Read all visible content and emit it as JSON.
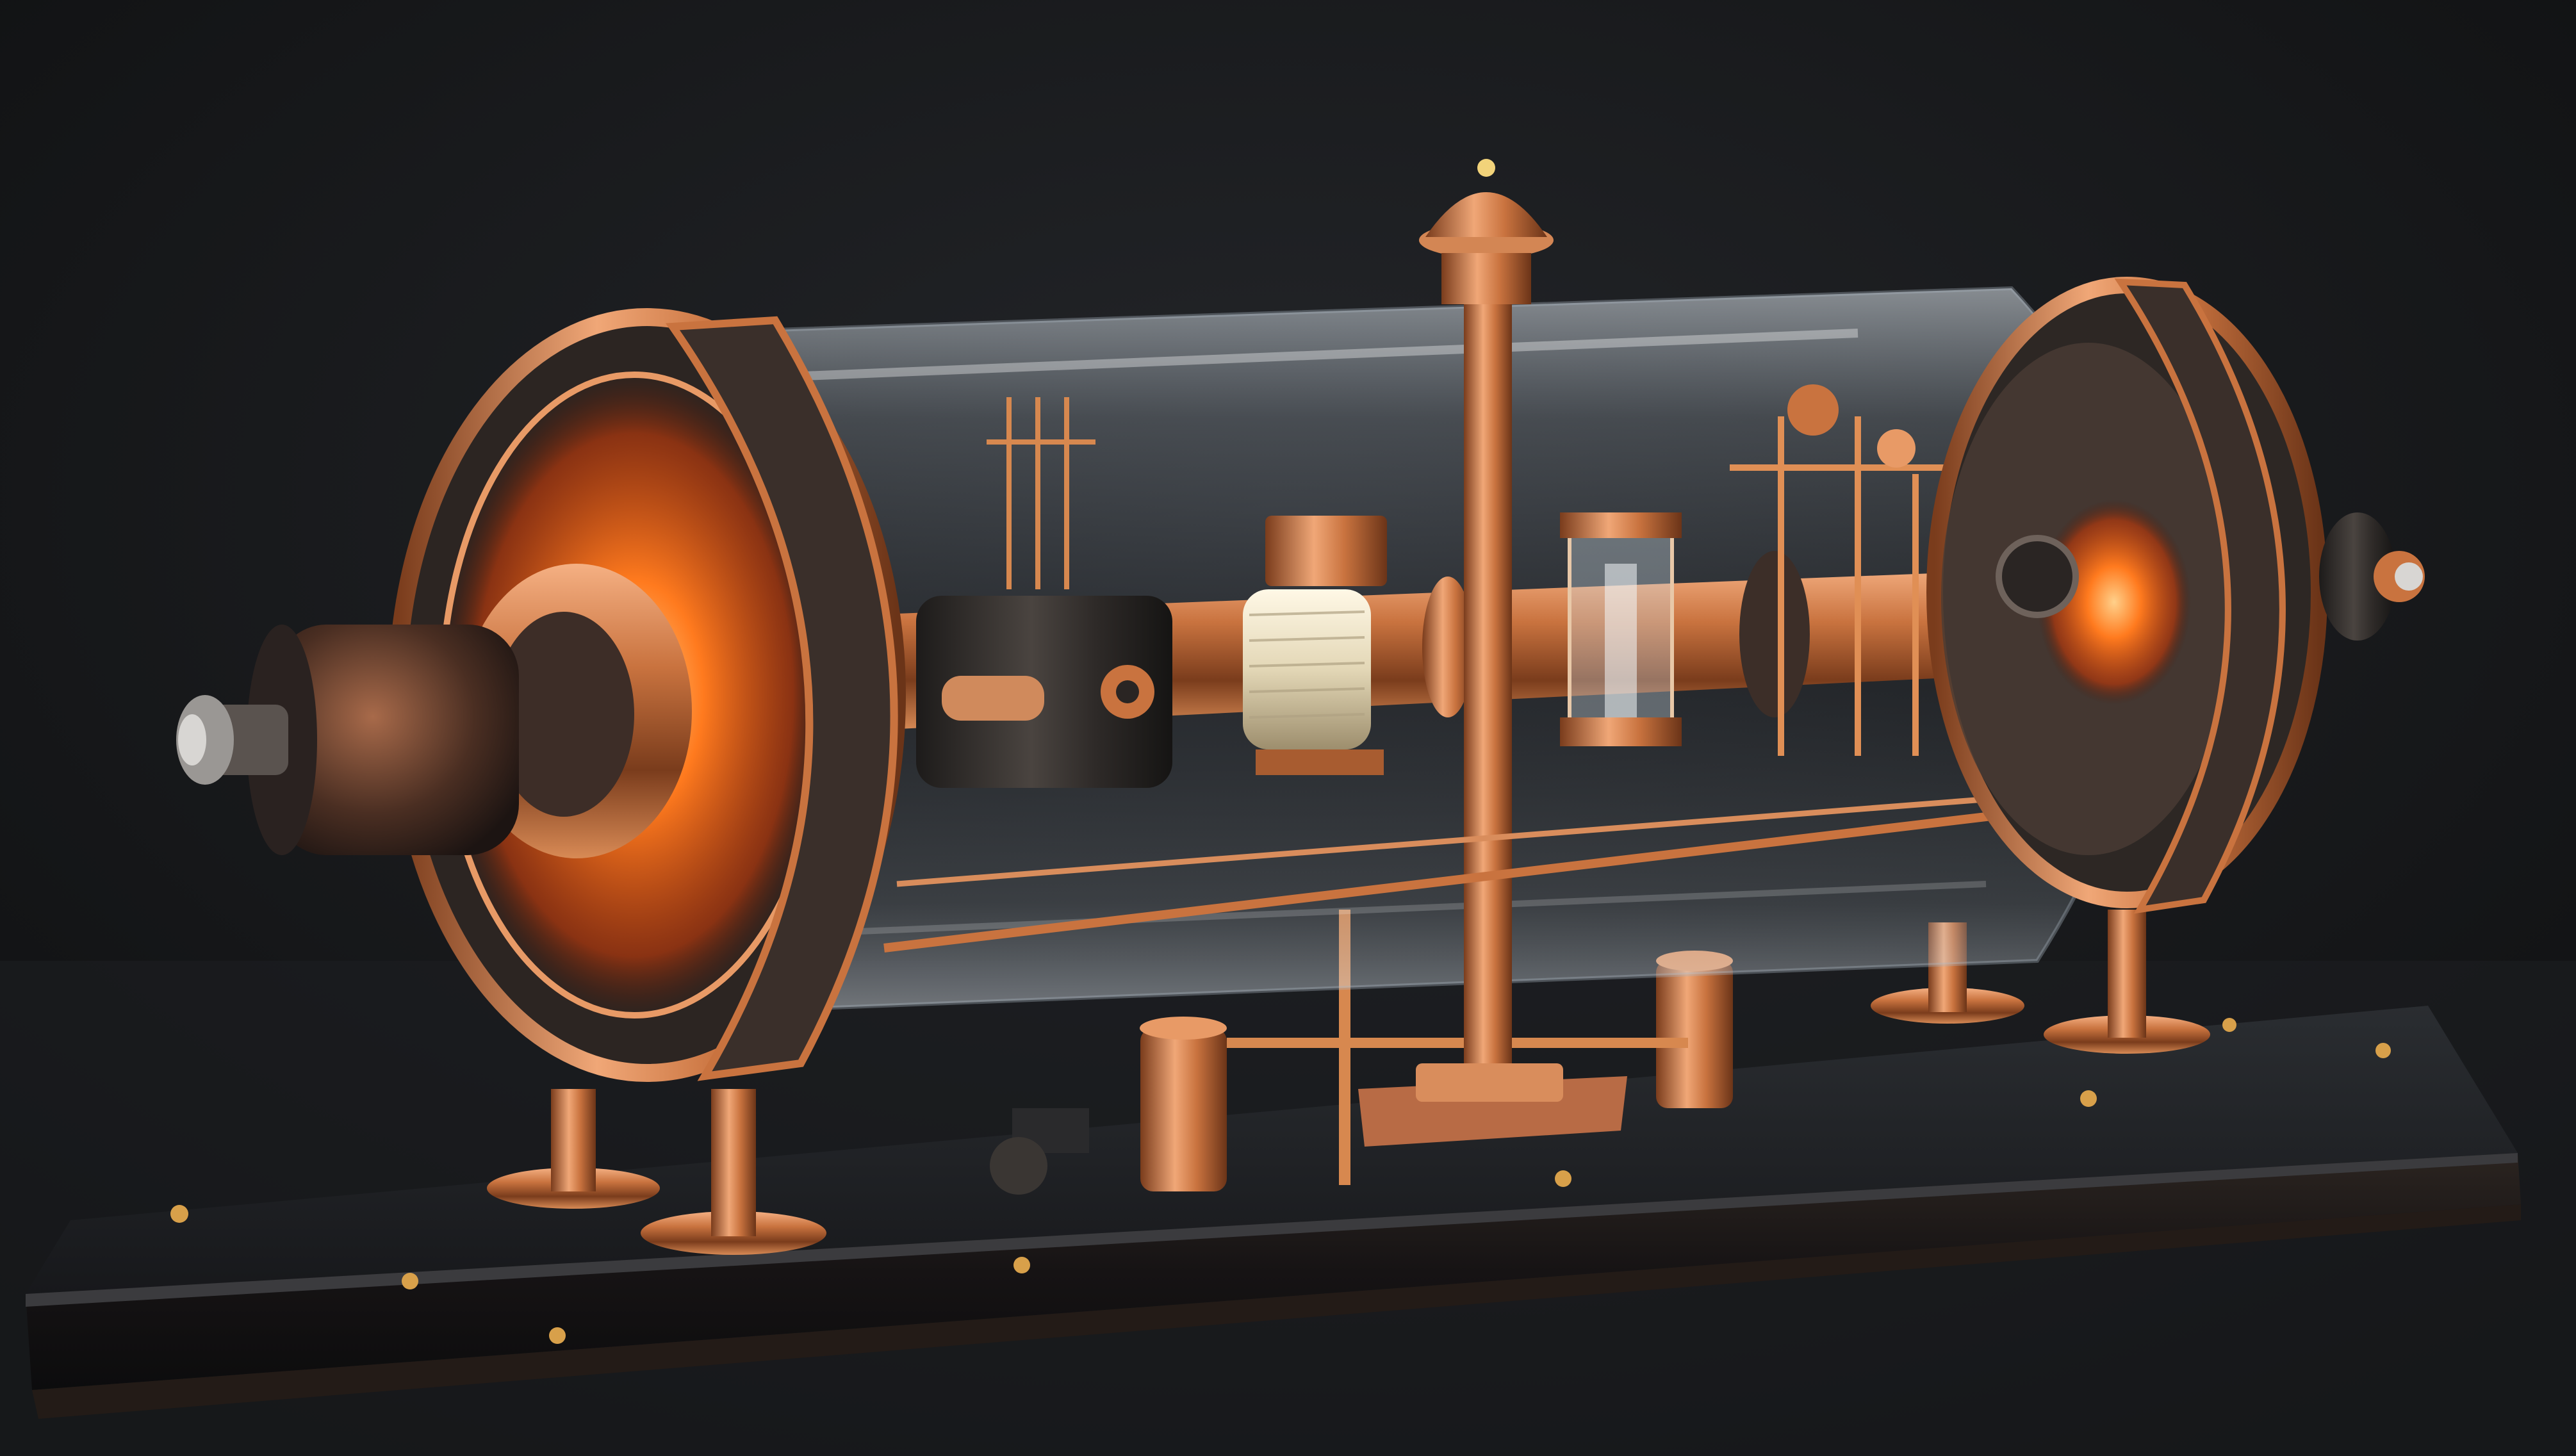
{
  "image": {
    "subject": "copper-and-glass-vacuum-tube-apparatus-on-dark-wooden-base",
    "palette": {
      "background": "#121314",
      "backdrop_glow": "#1d1f22",
      "copper": "#c9733f",
      "copper_highlight": "#f2a877",
      "copper_dark": "#6b3418",
      "glow_orange": "#ff6a1a",
      "glass": "#c8d3dc",
      "dark_metal": "#3a3633",
      "base_top": "#1e2024",
      "base_side": "#131416",
      "coil": "#e9e1c8"
    }
  }
}
